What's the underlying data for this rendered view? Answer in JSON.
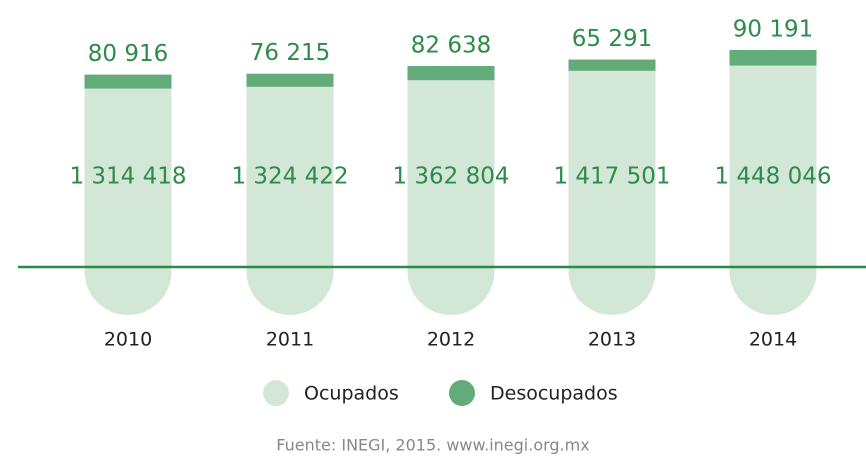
{
  "chart_data": {
    "type": "stacked_bar",
    "categories": [
      "2010",
      "2011",
      "2012",
      "2013",
      "2014"
    ],
    "series": [
      {
        "name": "Ocupados",
        "color": "#d3e7d7",
        "values": [
          1314418,
          1324422,
          1362804,
          1417501,
          1448046
        ],
        "value_labels": [
          "1 314 418",
          "1 324 422",
          "1 362 804",
          "1 417 501",
          "1 448 046"
        ]
      },
      {
        "name": "Desocupados",
        "color": "#63ab79",
        "values": [
          80916,
          76215,
          82638,
          65291,
          90191
        ],
        "value_labels": [
          "80 916",
          "76 215",
          "82 638",
          "65 291",
          "90 191"
        ]
      }
    ],
    "source": "Fuente: INEGI, 2015. www.inegi.org.mx"
  }
}
